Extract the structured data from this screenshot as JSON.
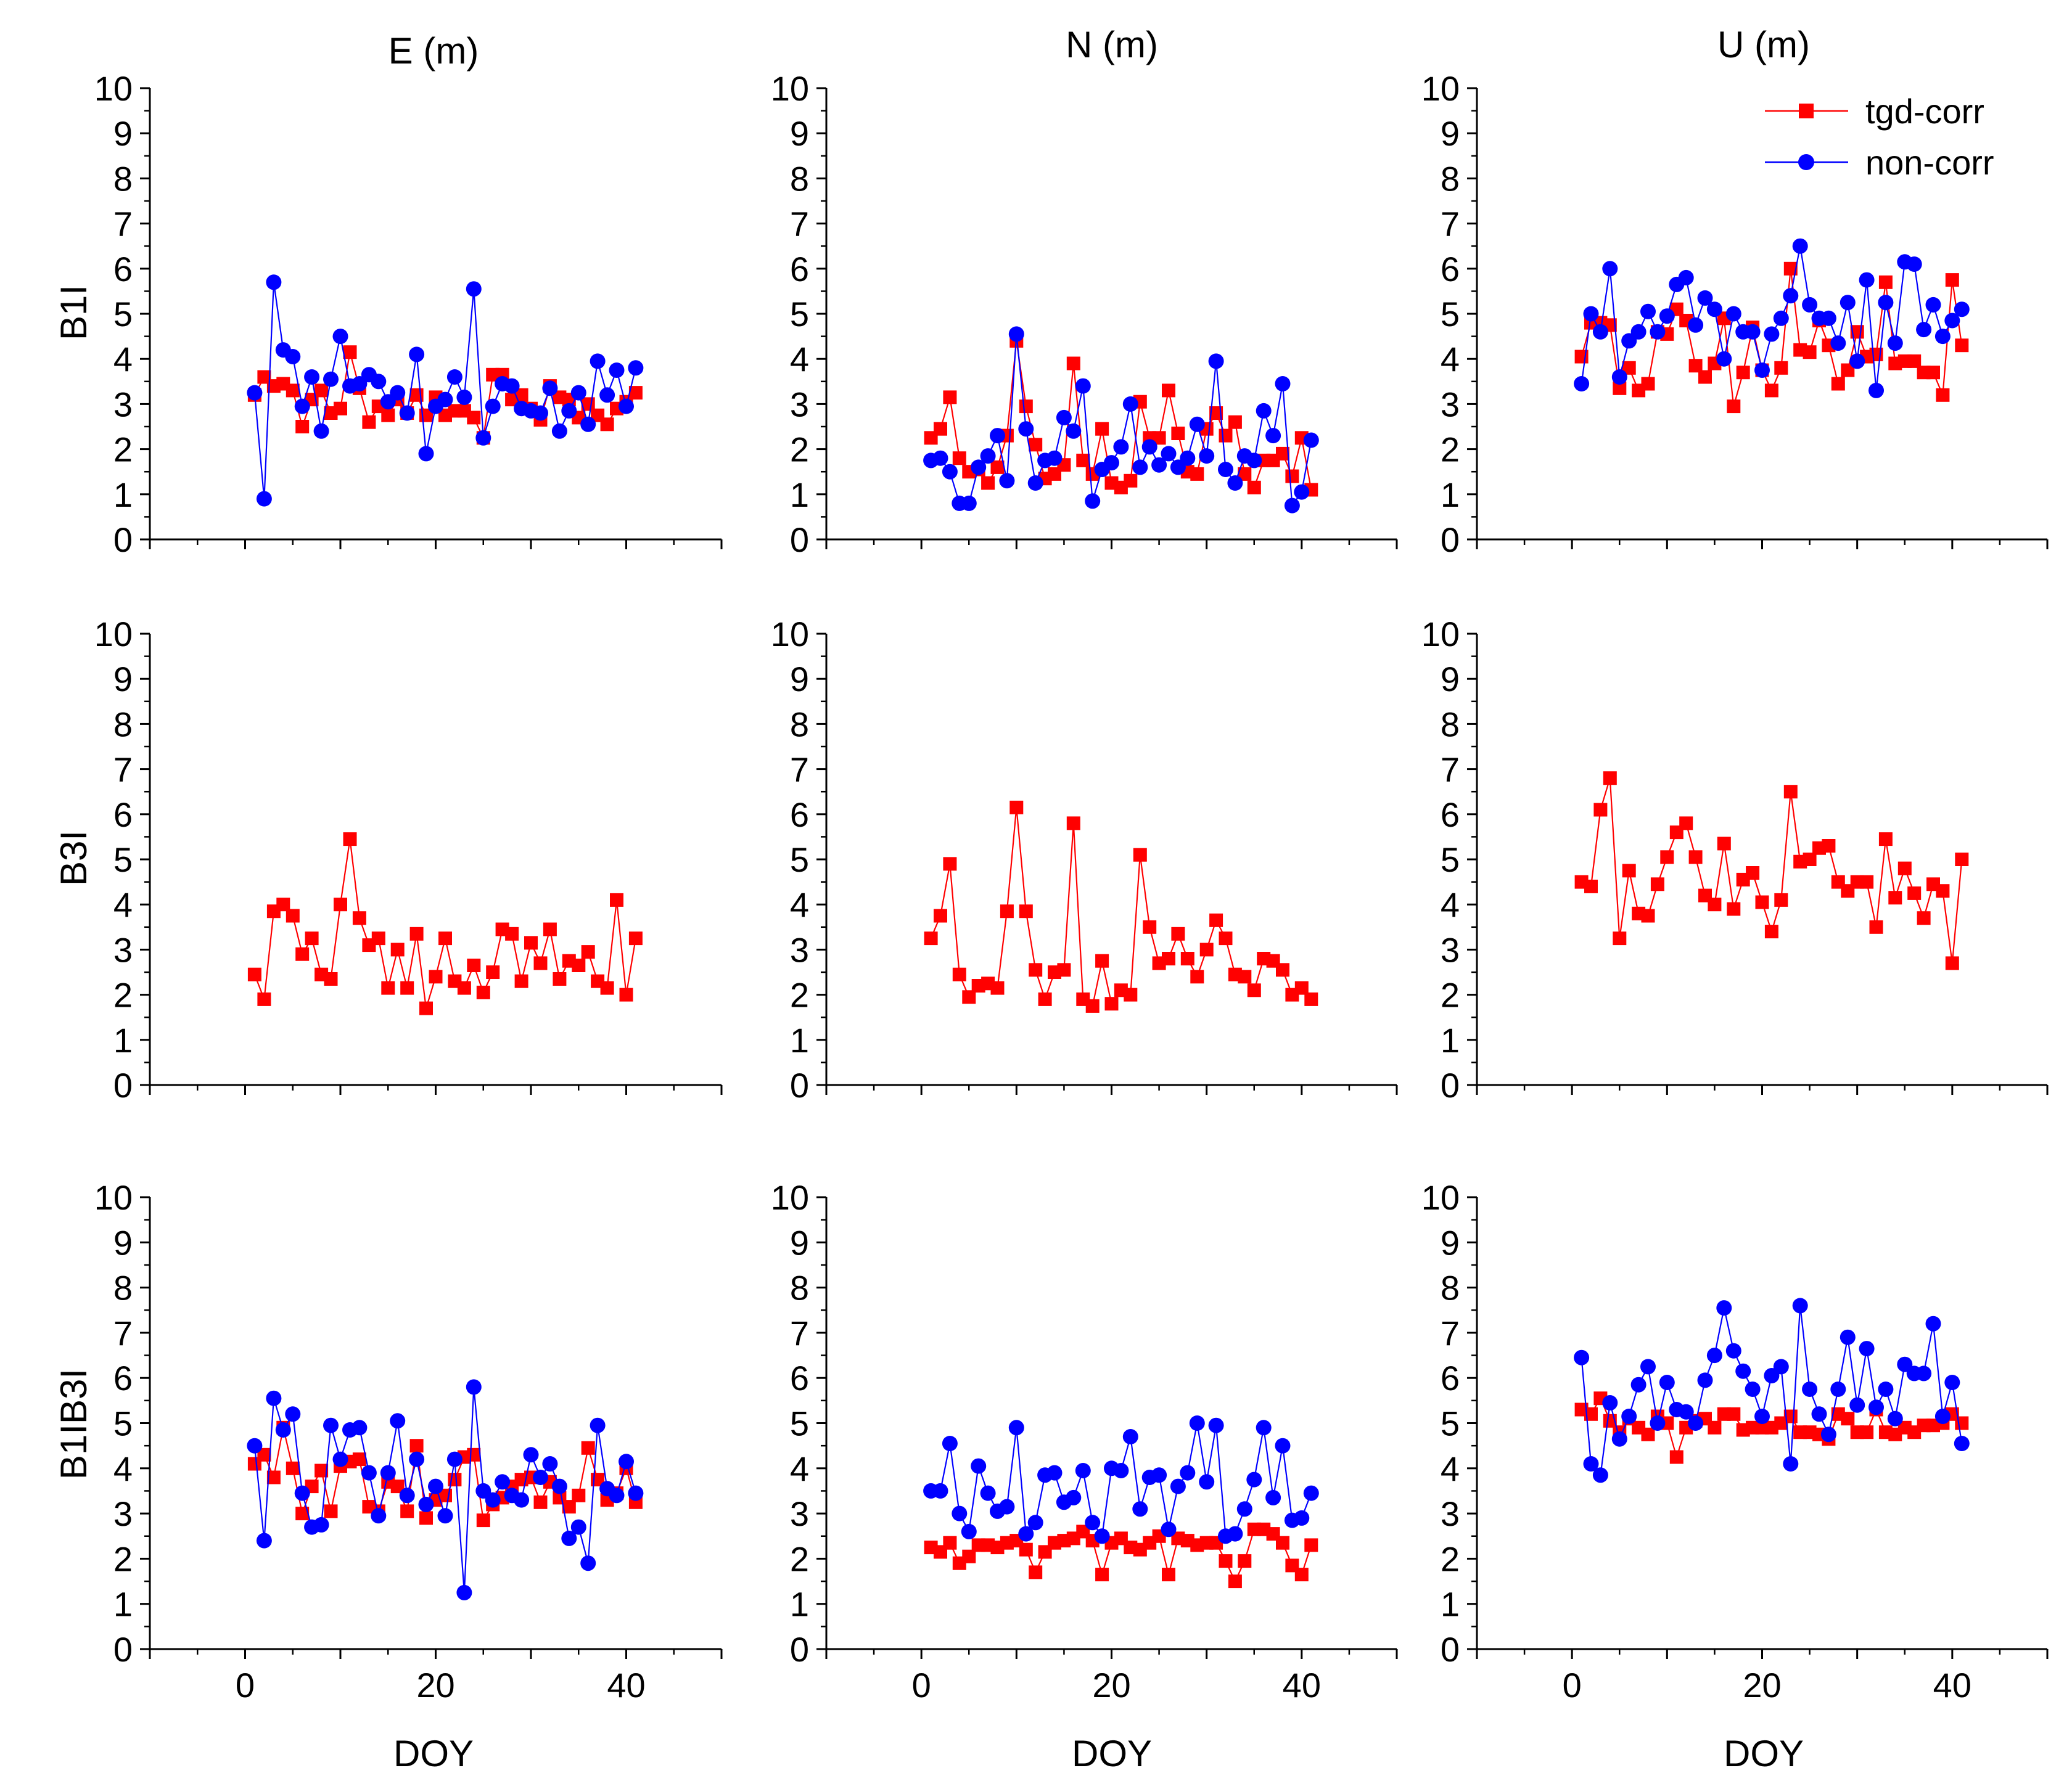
{
  "chart_data": {
    "type": "scatter",
    "layout": "3x3 grid of line-scatter panels",
    "column_titles": [
      "E (m)",
      "N (m)",
      "U (m)"
    ],
    "row_labels": [
      "B1I",
      "B3I",
      "B1IB3I"
    ],
    "xlabel": "DOY",
    "xlim": [
      -10,
      50
    ],
    "ylim": [
      0,
      10
    ],
    "x_ticks": [
      0,
      20,
      40
    ],
    "y_ticks": [
      0,
      1,
      2,
      3,
      4,
      5,
      6,
      7,
      8,
      9,
      10
    ],
    "legend": [
      {
        "name": "tgd-corr",
        "color": "#ff0000",
        "marker": "square"
      },
      {
        "name": "non-corr",
        "color": "#0000ff",
        "marker": "circle"
      }
    ],
    "legend_position": "top-right of U (m) B1I panel",
    "colors": {
      "tgd": "#ff0000",
      "non": "#0000ff"
    },
    "x": [
      1,
      2,
      3,
      4,
      5,
      6,
      7,
      8,
      9,
      10,
      11,
      12,
      13,
      14,
      15,
      16,
      17,
      18,
      19,
      20,
      21,
      22,
      23,
      24,
      25,
      26,
      27,
      28,
      29,
      30,
      31,
      32,
      33,
      34,
      35,
      36,
      37,
      38,
      39,
      40,
      41
    ],
    "panels": [
      {
        "row": "B1I",
        "col": "E (m)",
        "series": [
          {
            "name": "tgd-corr",
            "values": [
              3.2,
              3.6,
              3.4,
              3.45,
              3.3,
              2.5,
              3.1,
              3.3,
              2.8,
              2.9,
              4.15,
              3.35,
              2.6,
              2.95,
              2.75,
              3.1,
              2.8,
              3.2,
              2.75,
              3.15,
              2.75,
              2.85,
              2.85,
              2.7,
              2.25,
              3.65,
              3.65,
              3.1,
              3.2,
              2.9,
              2.65,
              3.4,
              3.15,
              3.1,
              2.7,
              3.0,
              2.75,
              2.55,
              2.9,
              3.05,
              3.25
            ]
          },
          {
            "name": "non-corr",
            "values": [
              3.25,
              0.9,
              5.7,
              4.2,
              4.05,
              2.95,
              3.6,
              2.4,
              3.55,
              4.5,
              3.4,
              3.45,
              3.65,
              3.5,
              3.05,
              3.25,
              2.8,
              4.1,
              1.9,
              2.95,
              3.1,
              3.6,
              3.15,
              5.55,
              2.25,
              2.95,
              3.45,
              3.4,
              2.9,
              2.85,
              2.8,
              3.35,
              2.4,
              2.85,
              3.25,
              2.55,
              3.95,
              3.2,
              3.75,
              2.95,
              3.8
            ]
          }
        ]
      },
      {
        "row": "B1I",
        "col": "N (m)",
        "series": [
          {
            "name": "tgd-corr",
            "values": [
              2.25,
              2.45,
              3.15,
              1.8,
              1.5,
              1.55,
              1.25,
              1.6,
              2.3,
              4.4,
              2.95,
              2.1,
              1.35,
              1.45,
              1.65,
              3.9,
              1.75,
              1.45,
              2.45,
              1.25,
              1.15,
              1.3,
              3.05,
              2.25,
              2.25,
              3.3,
              2.35,
              1.5,
              1.45,
              2.45,
              2.8,
              2.3,
              2.6,
              1.45,
              1.15,
              1.75,
              1.75,
              1.9,
              1.4,
              2.25,
              1.1
            ]
          },
          {
            "name": "non-corr",
            "values": [
              1.75,
              1.8,
              1.5,
              0.8,
              0.8,
              1.6,
              1.85,
              2.3,
              1.3,
              4.55,
              2.45,
              1.25,
              1.75,
              1.8,
              2.7,
              2.4,
              3.4,
              0.85,
              1.55,
              1.7,
              2.05,
              3.0,
              1.6,
              2.05,
              1.65,
              1.9,
              1.6,
              1.8,
              2.55,
              1.85,
              3.95,
              1.55,
              1.25,
              1.85,
              1.75,
              2.85,
              2.3,
              3.45,
              0.75,
              1.05,
              2.2
            ]
          }
        ]
      },
      {
        "row": "B1I",
        "col": "U (m)",
        "series": [
          {
            "name": "tgd-corr",
            "values": [
              4.05,
              4.8,
              4.8,
              4.75,
              3.35,
              3.8,
              3.3,
              3.45,
              4.6,
              4.55,
              5.1,
              4.85,
              3.85,
              3.6,
              3.9,
              4.9,
              2.95,
              3.7,
              4.7,
              3.75,
              3.3,
              3.8,
              6.0,
              4.2,
              4.15,
              4.85,
              4.3,
              3.45,
              3.75,
              4.6,
              4.05,
              4.1,
              5.7,
              3.9,
              3.95,
              3.95,
              3.7,
              3.7,
              3.2,
              5.75,
              4.3
            ]
          },
          {
            "name": "non-corr",
            "values": [
              3.45,
              5.0,
              4.6,
              6.0,
              3.6,
              4.4,
              4.6,
              5.05,
              4.6,
              4.95,
              5.65,
              5.8,
              4.75,
              5.35,
              5.1,
              4.0,
              5.0,
              4.6,
              4.6,
              3.75,
              4.55,
              4.9,
              5.4,
              6.5,
              5.2,
              4.9,
              4.9,
              4.35,
              5.25,
              3.95,
              5.75,
              3.3,
              5.25,
              4.35,
              6.15,
              6.1,
              4.65,
              5.2,
              4.5,
              4.85,
              5.1
            ]
          }
        ]
      },
      {
        "row": "B3I",
        "col": "E (m)",
        "series": [
          {
            "name": "tgd-corr",
            "values": [
              2.45,
              1.9,
              3.85,
              4.0,
              3.75,
              2.9,
              3.25,
              2.45,
              2.35,
              4.0,
              5.45,
              3.7,
              3.1,
              3.25,
              2.15,
              3.0,
              2.15,
              3.35,
              1.7,
              2.4,
              3.25,
              2.3,
              2.15,
              2.65,
              2.05,
              2.5,
              3.45,
              3.35,
              2.3,
              3.15,
              2.7,
              3.45,
              2.35,
              2.75,
              2.65,
              2.95,
              2.3,
              2.15,
              4.1,
              2.0,
              3.25
            ]
          }
        ]
      },
      {
        "row": "B3I",
        "col": "N (m)",
        "series": [
          {
            "name": "tgd-corr",
            "values": [
              3.25,
              3.75,
              4.9,
              2.45,
              1.95,
              2.2,
              2.25,
              2.15,
              3.85,
              6.15,
              3.85,
              2.55,
              1.9,
              2.5,
              2.55,
              5.8,
              1.9,
              1.75,
              2.75,
              1.8,
              2.1,
              2.0,
              5.1,
              3.5,
              2.7,
              2.8,
              3.35,
              2.8,
              2.4,
              3.0,
              3.65,
              3.25,
              2.45,
              2.4,
              2.1,
              2.8,
              2.75,
              2.55,
              2.0,
              2.15,
              1.9
            ]
          }
        ]
      },
      {
        "row": "B3I",
        "col": "U (m)",
        "series": [
          {
            "name": "tgd-corr",
            "values": [
              4.5,
              4.4,
              6.1,
              6.8,
              3.25,
              4.75,
              3.8,
              3.75,
              4.45,
              5.05,
              5.6,
              5.8,
              5.05,
              4.2,
              4.0,
              5.35,
              3.9,
              4.55,
              4.7,
              4.05,
              3.4,
              4.1,
              6.5,
              4.95,
              5.0,
              5.25,
              5.3,
              4.5,
              4.3,
              4.5,
              4.5,
              3.5,
              5.45,
              4.15,
              4.8,
              4.25,
              3.7,
              4.45,
              4.3,
              2.7,
              5.0
            ]
          }
        ]
      },
      {
        "row": "B1IB3I",
        "col": "E (m)",
        "series": [
          {
            "name": "tgd-corr",
            "values": [
              4.1,
              4.3,
              3.8,
              4.9,
              4.0,
              3.0,
              3.6,
              3.95,
              3.05,
              4.05,
              4.15,
              4.2,
              3.15,
              3.05,
              3.7,
              3.6,
              3.05,
              4.5,
              2.9,
              3.3,
              3.4,
              3.75,
              4.25,
              4.3,
              2.85,
              3.2,
              3.35,
              3.6,
              3.75,
              3.8,
              3.25,
              3.7,
              3.35,
              3.15,
              3.4,
              4.45,
              3.75,
              3.3,
              3.45,
              4.0,
              3.25
            ]
          },
          {
            "name": "non-corr",
            "values": [
              4.5,
              2.4,
              5.55,
              4.85,
              5.2,
              3.45,
              2.7,
              2.75,
              4.95,
              4.2,
              4.85,
              4.9,
              3.9,
              2.95,
              3.9,
              5.05,
              3.4,
              4.2,
              3.2,
              3.6,
              2.95,
              4.2,
              1.25,
              5.8,
              3.5,
              3.3,
              3.7,
              3.4,
              3.3,
              4.3,
              3.8,
              4.1,
              3.6,
              2.45,
              2.7,
              1.9,
              4.95,
              3.55,
              3.4,
              4.15,
              3.45
            ]
          }
        ]
      },
      {
        "row": "B1IB3I",
        "col": "N (m)",
        "series": [
          {
            "name": "tgd-corr",
            "values": [
              2.25,
              2.15,
              2.35,
              1.9,
              2.05,
              2.3,
              2.3,
              2.25,
              2.35,
              2.4,
              2.2,
              1.7,
              2.15,
              2.35,
              2.4,
              2.45,
              2.6,
              2.4,
              1.65,
              2.35,
              2.45,
              2.25,
              2.2,
              2.35,
              2.5,
              1.65,
              2.45,
              2.4,
              2.3,
              2.35,
              2.35,
              1.95,
              1.5,
              1.95,
              2.65,
              2.65,
              2.55,
              2.35,
              1.85,
              1.65,
              2.3
            ]
          },
          {
            "name": "non-corr",
            "values": [
              3.5,
              3.5,
              4.55,
              3.0,
              2.6,
              4.05,
              3.45,
              3.05,
              3.15,
              4.9,
              2.55,
              2.8,
              3.85,
              3.9,
              3.25,
              3.35,
              3.95,
              2.8,
              2.5,
              4.0,
              3.95,
              4.7,
              3.1,
              3.8,
              3.85,
              2.65,
              3.6,
              3.9,
              5.0,
              3.7,
              4.95,
              2.5,
              2.55,
              3.1,
              3.75,
              4.9,
              3.35,
              4.5,
              2.85,
              2.9,
              3.45
            ]
          }
        ]
      },
      {
        "row": "B1IB3I",
        "col": "U (m)",
        "series": [
          {
            "name": "tgd-corr",
            "values": [
              5.3,
              5.2,
              5.55,
              5.05,
              4.8,
              5.1,
              4.9,
              4.75,
              5.15,
              5.0,
              4.25,
              4.9,
              5.05,
              5.1,
              4.9,
              5.2,
              5.2,
              4.85,
              4.9,
              4.9,
              4.9,
              5.0,
              5.15,
              4.8,
              4.8,
              4.75,
              4.65,
              5.2,
              5.1,
              4.8,
              4.8,
              5.3,
              4.8,
              4.75,
              4.9,
              4.8,
              4.95,
              4.95,
              5.0,
              5.2,
              5.0
            ]
          },
          {
            "name": "non-corr",
            "values": [
              6.45,
              4.1,
              3.85,
              5.45,
              4.65,
              5.15,
              5.85,
              6.25,
              5.0,
              5.9,
              5.3,
              5.25,
              5.0,
              5.95,
              6.5,
              7.55,
              6.6,
              6.15,
              5.75,
              5.15,
              6.05,
              6.25,
              4.1,
              7.6,
              5.75,
              5.2,
              4.75,
              5.75,
              6.9,
              5.4,
              6.65,
              5.35,
              5.75,
              5.1,
              6.3,
              6.1,
              6.1,
              7.2,
              5.15,
              5.9,
              4.55
            ]
          }
        ]
      }
    ]
  }
}
